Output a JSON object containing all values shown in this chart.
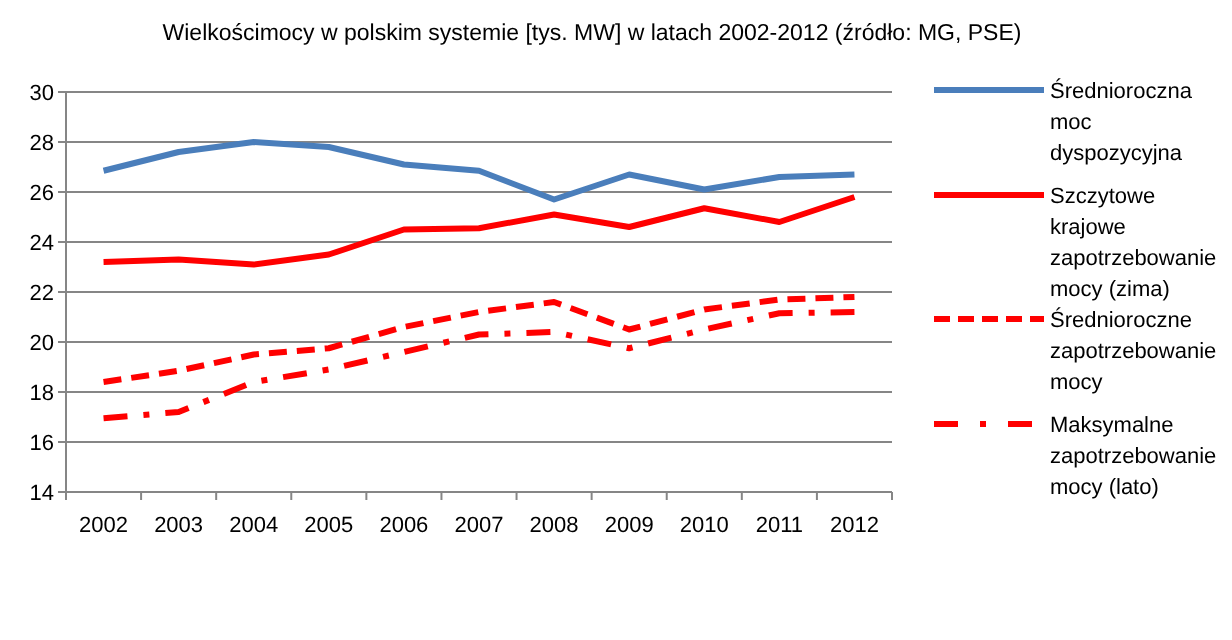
{
  "chart_data": {
    "type": "line",
    "title": "Wielkościmocy w polskim systemie [tys. MW] w latach 2002-2012 (źródło: MG, PSE)",
    "categories": [
      "2002",
      "2003",
      "2004",
      "2005",
      "2006",
      "2007",
      "2008",
      "2009",
      "2010",
      "2011",
      "2012"
    ],
    "series": [
      {
        "name": "Średnioroczna moc dyspozycyjna",
        "color": "#4a7ebb",
        "line_style": "solid",
        "values": [
          26.85,
          27.6,
          28.0,
          27.8,
          27.1,
          26.85,
          25.7,
          26.7,
          26.1,
          26.6,
          26.7
        ]
      },
      {
        "name": "Szczytowe krajowe zapotrzebowanie mocy (zima)",
        "color": "#ff0000",
        "line_style": "solid",
        "values": [
          23.2,
          23.3,
          23.1,
          23.5,
          24.5,
          24.55,
          25.1,
          24.6,
          25.35,
          24.8,
          25.8
        ]
      },
      {
        "name": "Średnioroczne zapotrzebowanie mocy",
        "color": "#ff0000",
        "line_style": "dashed",
        "values": [
          18.4,
          18.85,
          19.5,
          19.75,
          20.6,
          21.2,
          21.6,
          20.5,
          21.3,
          21.7,
          21.8
        ]
      },
      {
        "name": "Maksymalne zapotrzebowanie mocy (lato)",
        "color": "#ff0000",
        "line_style": "dashdot",
        "values": [
          16.95,
          17.2,
          18.4,
          18.9,
          19.6,
          20.3,
          20.4,
          19.75,
          20.5,
          21.15,
          21.2
        ]
      }
    ],
    "ylim": [
      14,
      30
    ],
    "yticks": [
      14,
      16,
      18,
      20,
      22,
      24,
      26,
      28,
      30
    ],
    "grid": "y",
    "legend": "right",
    "marker": "none"
  }
}
